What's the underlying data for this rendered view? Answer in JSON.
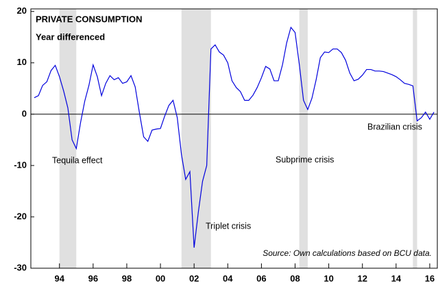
{
  "chart_data": {
    "type": "line",
    "title": "PRIVATE CONSUMPTION",
    "subtitle": "Year differenced",
    "x": [
      1992.5,
      1992.75,
      1993,
      1993.25,
      1993.5,
      1993.75,
      1994,
      1994.25,
      1994.5,
      1994.75,
      1995,
      1995.25,
      1995.5,
      1995.75,
      1996,
      1996.25,
      1996.5,
      1996.75,
      1997,
      1997.25,
      1997.5,
      1997.75,
      1998,
      1998.25,
      1998.5,
      1998.75,
      1999,
      1999.25,
      1999.5,
      1999.75,
      2000,
      2000.25,
      2000.5,
      2000.75,
      2001,
      2001.25,
      2001.5,
      2001.75,
      2002,
      2002.25,
      2002.5,
      2002.75,
      2003,
      2003.25,
      2003.5,
      2003.75,
      2004,
      2004.25,
      2004.5,
      2004.75,
      2005,
      2005.25,
      2005.5,
      2005.75,
      2006,
      2006.25,
      2006.5,
      2006.75,
      2007,
      2007.25,
      2007.5,
      2007.75,
      2008,
      2008.25,
      2008.5,
      2008.75,
      2009,
      2009.25,
      2009.5,
      2009.75,
      2010,
      2010.25,
      2010.5,
      2010.75,
      2011,
      2011.25,
      2011.5,
      2011.75,
      2012,
      2012.25,
      2012.5,
      2012.75,
      2013,
      2013.25,
      2013.5,
      2013.75,
      2014,
      2014.25,
      2014.5,
      2014.75,
      2015,
      2015.25,
      2015.5,
      2015.75,
      2016,
      2016.25
    ],
    "series": [
      {
        "color": "#0000dd",
        "values": [
          3.2,
          3.6,
          5.6,
          6.3,
          8.5,
          9.5,
          7.3,
          4.5,
          1.2,
          -5,
          -6.7,
          -1.7,
          2.5,
          5.6,
          9.6,
          7.3,
          3.6,
          6,
          7.5,
          6.7,
          7.1,
          6,
          6.3,
          7.5,
          5.3,
          0.3,
          -4.4,
          -5.3,
          -3.1,
          -2.9,
          -2.8,
          -0.4,
          1.7,
          2.7,
          -0.7,
          -7.9,
          -12.7,
          -11.2,
          -26,
          -19.1,
          -13.1,
          -10,
          12.7,
          13.5,
          12.1,
          11.5,
          10,
          6.5,
          5.2,
          4.4,
          2.7,
          2.7,
          3.7,
          5.2,
          7.1,
          9.3,
          8.8,
          6.5,
          6.5,
          9.6,
          13.9,
          16.9,
          15.9,
          9.7,
          2.7,
          0.9,
          3.1,
          6.7,
          11,
          12.1,
          12,
          12.7,
          12.7,
          12,
          10.5,
          8,
          6.5,
          6.8,
          7.6,
          8.7,
          8.7,
          8.4,
          8.4,
          8.3,
          8,
          7.7,
          7.3,
          6.7,
          6,
          5.8,
          5.5,
          -1.3,
          -0.7,
          0.4,
          -1,
          0.4
        ]
      }
    ],
    "shaded_periods": [
      [
        1994,
        1995
      ],
      [
        2001.25,
        2003
      ],
      [
        2008.25,
        2008.75
      ],
      [
        2015,
        2015.25
      ]
    ],
    "shade_color": "#e0e0e0",
    "annotations": [
      "Tequila effect",
      "Triplet crisis",
      "Subprime crisis",
      "Brazilian crisis"
    ],
    "source": "Source: Own calculations based on BCU data.",
    "xlim": [
      1992.3,
      2016.45
    ],
    "xticks": [
      {
        "value": 1994,
        "label": "94"
      },
      {
        "value": 1996,
        "label": "96"
      },
      {
        "value": 1998,
        "label": "98"
      },
      {
        "value": 2000,
        "label": "00"
      },
      {
        "value": 2002,
        "label": "02"
      },
      {
        "value": 2004,
        "label": "04"
      },
      {
        "value": 2006,
        "label": "06"
      },
      {
        "value": 2008,
        "label": "08"
      },
      {
        "value": 2010,
        "label": "10"
      },
      {
        "value": 2012,
        "label": "12"
      },
      {
        "value": 2014,
        "label": "14"
      },
      {
        "value": 2016,
        "label": "16"
      }
    ],
    "ylim": [
      -30,
      20.5
    ],
    "yticks": [
      20,
      10,
      0,
      -10,
      -20,
      -30
    ]
  }
}
